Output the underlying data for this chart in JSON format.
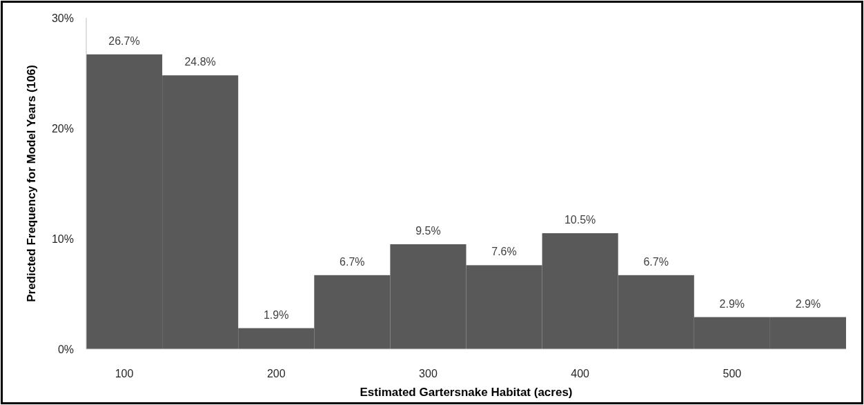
{
  "chart_data": {
    "type": "histogram",
    "xlabel": "Estimated Gartersnake Habitat (acres)",
    "ylabel": "Predicted Frequency for Model Years (106)",
    "bins": [
      75,
      125,
      175,
      225,
      275,
      325,
      375,
      425,
      475,
      525,
      575
    ],
    "values": [
      26.7,
      24.8,
      1.9,
      6.7,
      9.5,
      7.6,
      10.5,
      6.7,
      2.9,
      2.9
    ],
    "value_labels": [
      "26.7%",
      "24.8%",
      "1.9%",
      "6.7%",
      "9.5%",
      "7.6%",
      "10.5%",
      "6.7%",
      "2.9%",
      "2.9%"
    ],
    "color": "#595959",
    "xlim": [
      75,
      575
    ],
    "xticks": [
      100,
      200,
      300,
      400,
      500
    ],
    "ylim": [
      0,
      30
    ],
    "yticks": [
      {
        "value": 0,
        "label": "0%"
      },
      {
        "value": 10,
        "label": "10%"
      },
      {
        "value": 20,
        "label": "20%"
      },
      {
        "value": 30,
        "label": "30%"
      }
    ]
  }
}
